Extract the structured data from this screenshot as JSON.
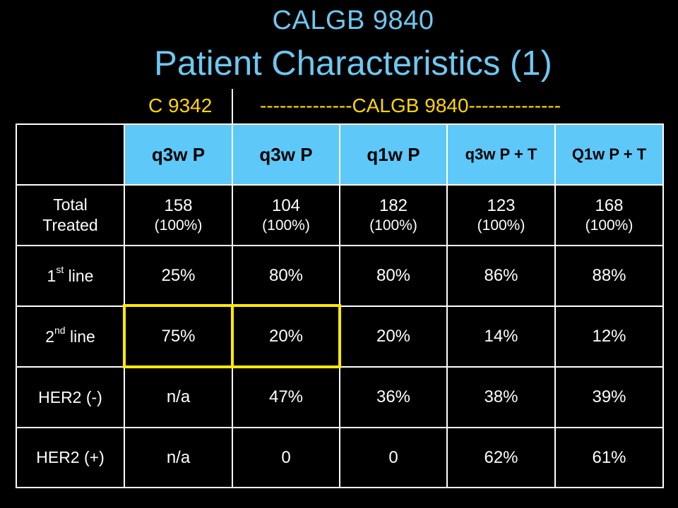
{
  "title": "CALGB 9840",
  "subtitle": "Patient Characteristics (1)",
  "groups": {
    "left": "C 9342",
    "right": "--------------CALGB 9840--------------"
  },
  "columns": [
    "q3w P",
    "q3w P",
    "q1w P",
    "q3w P + T",
    "Q1w P + T"
  ],
  "rows": [
    {
      "label_line1": "Total",
      "label_line2": "Treated",
      "cells": [
        {
          "value": "158",
          "pct": "(100%)"
        },
        {
          "value": "104",
          "pct": "(100%)"
        },
        {
          "value": "182",
          "pct": "(100%)"
        },
        {
          "value": "123",
          "pct": "(100%)"
        },
        {
          "value": "168",
          "pct": "(100%)"
        }
      ]
    },
    {
      "label_prefix": "1",
      "label_sup": "st",
      "label_suffix": " line",
      "cells": [
        "25%",
        "80%",
        "80%",
        "86%",
        "88%"
      ]
    },
    {
      "label_prefix": "2",
      "label_sup": "nd",
      "label_suffix": " line",
      "cells": [
        "75%",
        "20%",
        "20%",
        "14%",
        "12%"
      ]
    },
    {
      "label": "HER2 (-)",
      "cells": [
        "n/a",
        "47%",
        "36%",
        "38%",
        "39%"
      ]
    },
    {
      "label": "HER2 (+)",
      "cells": [
        "n/a",
        "0",
        "0",
        "62%",
        "61%"
      ]
    }
  ],
  "colors": {
    "background": "#000000",
    "title": "#6ec8f0",
    "group_label": "#ffd700",
    "header_fill": "#5ec8f8",
    "highlight": "#ffeb00",
    "grid": "#ffffff"
  }
}
